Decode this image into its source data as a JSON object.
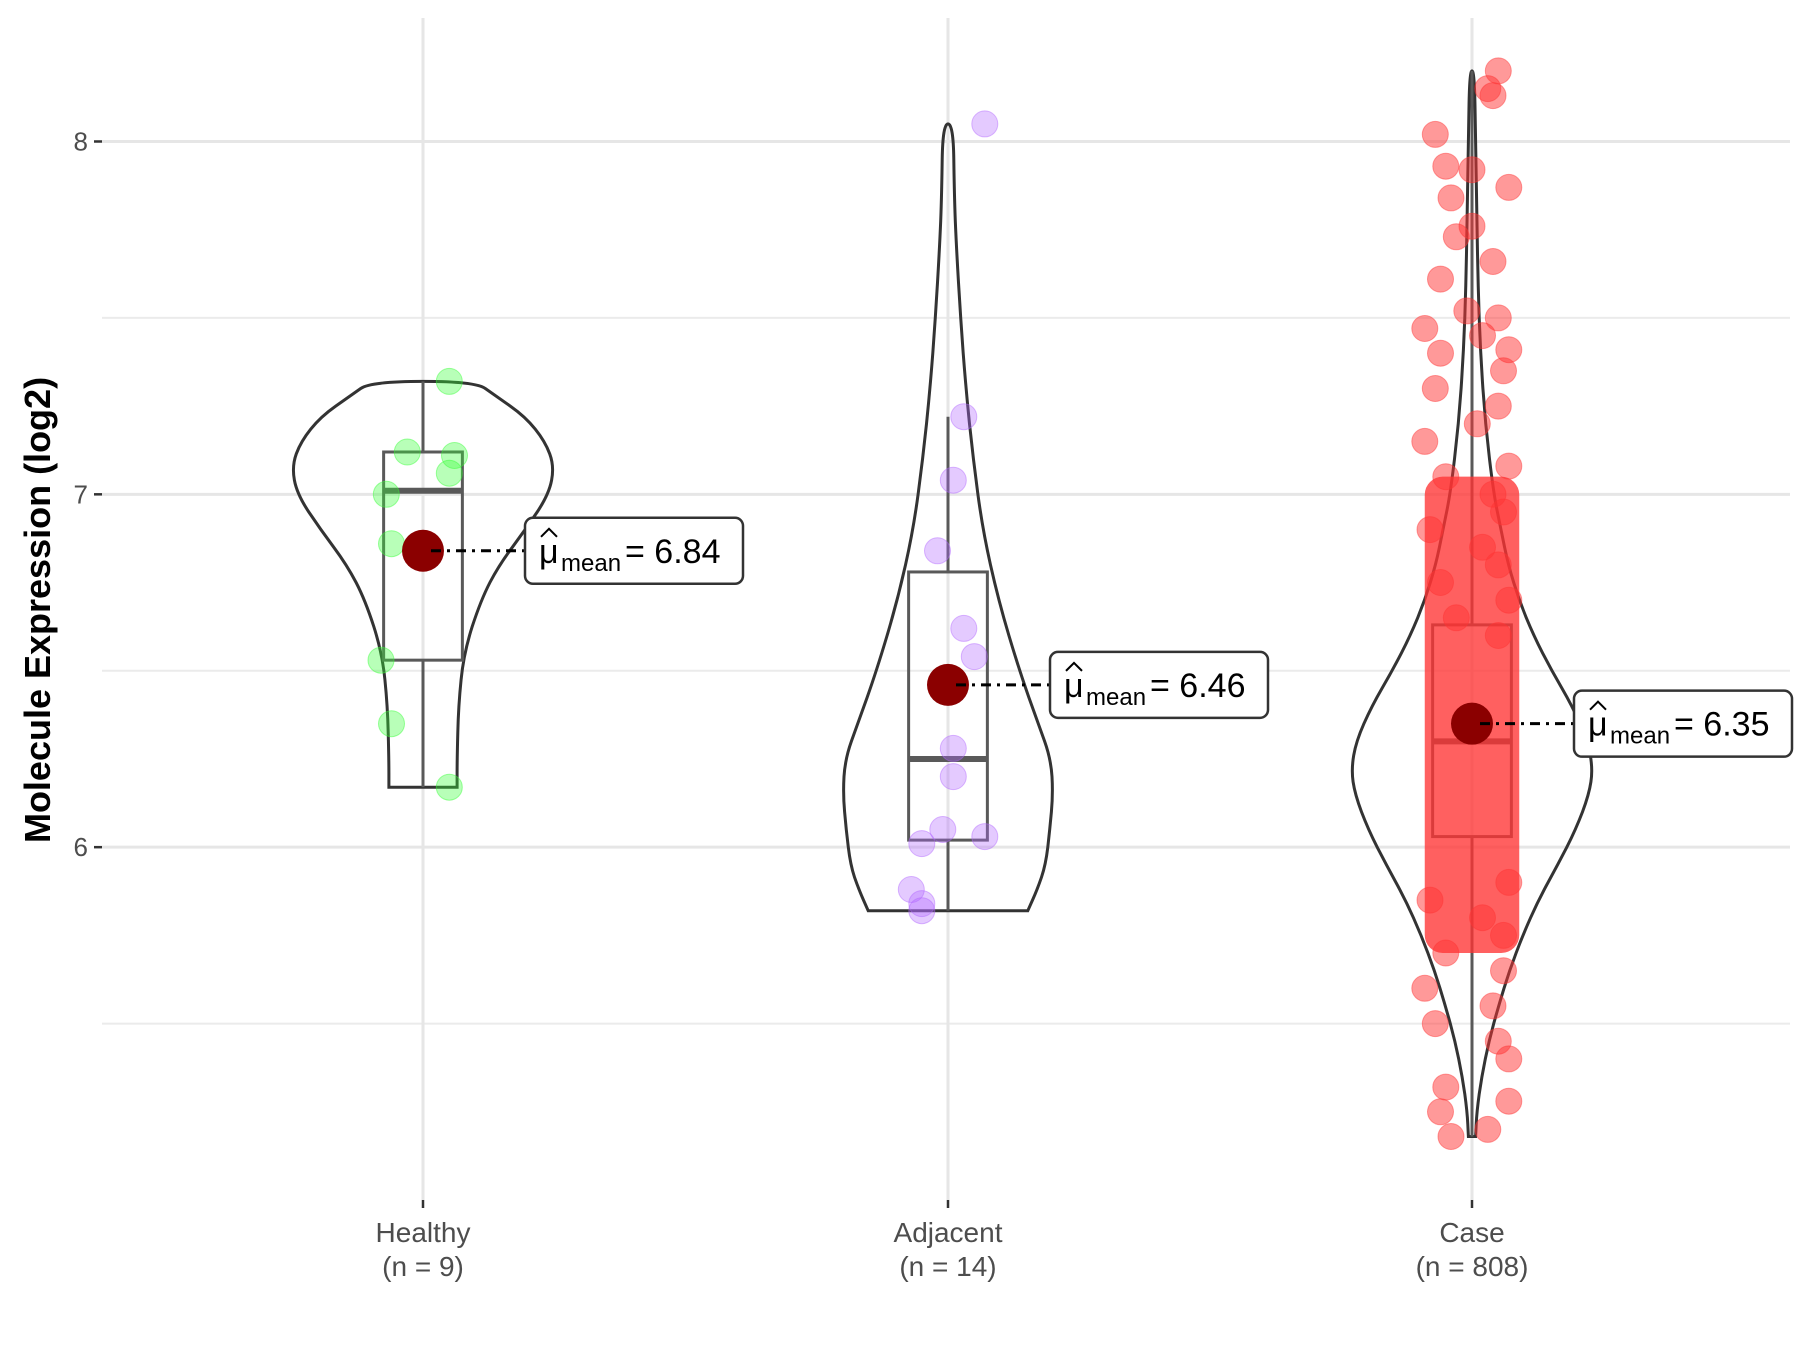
{
  "chart_data": {
    "type": "violin",
    "ylabel": "Molecule Expression (log2)",
    "ylim": [
      5.0,
      8.35
    ],
    "yticks": [
      6,
      7,
      8
    ],
    "grid": true,
    "mean_symbol": "μ",
    "mean_subscript": "mean",
    "groups": [
      {
        "name": "Healthy",
        "n_label": "(n = 9)",
        "color": "#33ff33",
        "mean": 6.84,
        "mean_label": "= 6.84",
        "box": {
          "min": 6.17,
          "q1": 6.53,
          "median": 7.01,
          "q3": 7.12,
          "max": 7.32
        },
        "points": [
          7.32,
          7.12,
          7.11,
          7.06,
          7.0,
          6.86,
          6.53,
          6.35,
          6.17
        ],
        "jitter": [
          0.05,
          -0.03,
          0.06,
          0.05,
          -0.07,
          -0.06,
          -0.08,
          -0.06,
          0.05
        ],
        "violin": {
          "max_halfwidth": 0.25,
          "profile": [
            [
              6.17,
              0.26
            ],
            [
              6.25,
              0.26
            ],
            [
              6.4,
              0.27
            ],
            [
              6.55,
              0.31
            ],
            [
              6.7,
              0.44
            ],
            [
              6.8,
              0.58
            ],
            [
              6.9,
              0.78
            ],
            [
              7.0,
              0.96
            ],
            [
              7.08,
              1.0
            ],
            [
              7.15,
              0.93
            ],
            [
              7.22,
              0.78
            ],
            [
              7.28,
              0.55
            ],
            [
              7.32,
              0.4
            ]
          ]
        }
      },
      {
        "name": "Adjacent",
        "n_label": "(n = 14)",
        "color": "#b266ff",
        "mean": 6.46,
        "mean_label": "= 6.46",
        "box": {
          "min": 5.82,
          "q1": 6.02,
          "median": 6.25,
          "q3": 6.78,
          "max": 7.22
        },
        "points": [
          8.05,
          7.22,
          7.04,
          6.84,
          6.62,
          6.54,
          6.28,
          6.2,
          6.05,
          6.03,
          6.01,
          5.88,
          5.84,
          5.82
        ],
        "jitter": [
          0.07,
          0.03,
          0.01,
          -0.02,
          0.03,
          0.05,
          0.01,
          0.01,
          -0.01,
          0.07,
          -0.05,
          -0.07,
          -0.05,
          -0.05
        ],
        "violin": {
          "max_halfwidth": 0.2,
          "profile": [
            [
              5.82,
              0.76
            ],
            [
              5.88,
              0.85
            ],
            [
              5.95,
              0.93
            ],
            [
              6.05,
              0.97
            ],
            [
              6.15,
              1.0
            ],
            [
              6.25,
              0.98
            ],
            [
              6.35,
              0.86
            ],
            [
              6.5,
              0.68
            ],
            [
              6.7,
              0.48
            ],
            [
              6.9,
              0.33
            ],
            [
              7.1,
              0.24
            ],
            [
              7.3,
              0.17
            ],
            [
              7.5,
              0.12
            ],
            [
              7.7,
              0.08
            ],
            [
              7.85,
              0.06
            ],
            [
              8.05,
              0.05
            ]
          ]
        }
      },
      {
        "name": "Case",
        "n_label": "(n = 808)",
        "color": "#ff3333",
        "mean": 6.35,
        "mean_label": "= 6.35",
        "box": {
          "min": 5.18,
          "q1": 6.03,
          "median": 6.3,
          "q3": 6.63,
          "max": 8.2
        },
        "points": [
          8.2,
          8.15,
          8.13,
          8.02,
          7.93,
          7.92,
          7.87,
          7.84,
          7.76,
          7.73,
          7.66,
          7.61,
          7.52,
          7.5,
          7.47,
          7.45,
          7.41,
          7.4,
          7.35,
          7.3,
          7.25,
          7.2,
          7.15,
          7.08,
          7.05,
          7.0,
          6.95,
          6.9,
          6.85,
          6.8,
          6.75,
          6.7,
          6.65,
          6.6,
          5.9,
          5.85,
          5.8,
          5.75,
          5.7,
          5.65,
          5.6,
          5.55,
          5.5,
          5.45,
          5.4,
          5.32,
          5.28,
          5.25,
          5.2,
          5.18
        ],
        "jitter": [
          0.05,
          0.03,
          0.04,
          -0.07,
          -0.05,
          0.0,
          0.07,
          -0.04,
          0.0,
          -0.03,
          0.04,
          -0.06,
          -0.01,
          0.05,
          -0.09,
          0.02,
          0.07,
          -0.06,
          0.06,
          -0.07,
          0.05,
          0.01,
          -0.09,
          0.07,
          -0.05,
          0.04,
          0.06,
          -0.08,
          0.02,
          0.05,
          -0.06,
          0.07,
          -0.03,
          0.05,
          0.07,
          -0.08,
          0.02,
          0.06,
          -0.05,
          0.06,
          -0.09,
          0.04,
          -0.07,
          0.05,
          0.07,
          -0.05,
          0.07,
          -0.06,
          0.03,
          -0.04
        ],
        "violin": {
          "max_halfwidth": 0.23,
          "profile": [
            [
              5.18,
              0.03
            ],
            [
              5.25,
              0.04
            ],
            [
              5.35,
              0.08
            ],
            [
              5.45,
              0.14
            ],
            [
              5.55,
              0.22
            ],
            [
              5.65,
              0.31
            ],
            [
              5.75,
              0.42
            ],
            [
              5.85,
              0.55
            ],
            [
              5.95,
              0.71
            ],
            [
              6.05,
              0.86
            ],
            [
              6.15,
              0.97
            ],
            [
              6.22,
              1.0
            ],
            [
              6.3,
              0.96
            ],
            [
              6.4,
              0.83
            ],
            [
              6.5,
              0.66
            ],
            [
              6.6,
              0.51
            ],
            [
              6.7,
              0.39
            ],
            [
              6.8,
              0.3
            ],
            [
              6.9,
              0.24
            ],
            [
              7.0,
              0.18
            ],
            [
              7.2,
              0.11
            ],
            [
              7.4,
              0.07
            ],
            [
              7.6,
              0.05
            ],
            [
              7.8,
              0.04
            ],
            [
              8.0,
              0.03
            ],
            [
              8.2,
              0.02
            ]
          ]
        }
      }
    ]
  }
}
